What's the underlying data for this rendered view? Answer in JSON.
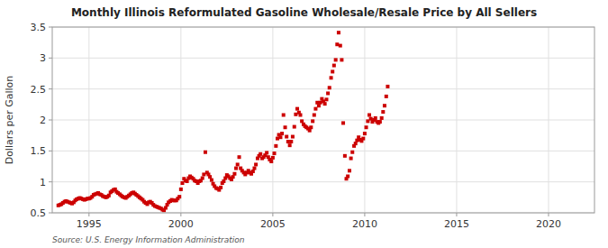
{
  "chart_data": {
    "type": "scatter",
    "title": "Monthly Illinois Reformulated Gasoline Wholesale/Resale Price by All Sellers",
    "ylabel": "Dollars per Gallon",
    "annotations": [
      "Source: U.S. Energy Information Administration"
    ],
    "color": "#cc0000",
    "marker": "square",
    "grid": true,
    "xlim": [
      1993.0,
      2022.5
    ],
    "ylim": [
      0.5,
      3.5
    ],
    "xticks": [
      1995,
      2000,
      2005,
      2010,
      2015,
      2020
    ],
    "yticks": [
      0.5,
      1,
      1.5,
      2,
      2.5,
      3,
      3.5
    ],
    "x": [
      1993.33,
      1993.42,
      1993.5,
      1993.58,
      1993.67,
      1993.75,
      1993.83,
      1993.92,
      1994.0,
      1994.08,
      1994.17,
      1994.25,
      1994.33,
      1994.42,
      1994.5,
      1994.58,
      1994.67,
      1994.75,
      1994.83,
      1994.92,
      1995.0,
      1995.08,
      1995.17,
      1995.25,
      1995.33,
      1995.42,
      1995.5,
      1995.58,
      1995.67,
      1995.75,
      1995.83,
      1995.92,
      1996.0,
      1996.08,
      1996.17,
      1996.25,
      1996.33,
      1996.42,
      1996.5,
      1996.58,
      1996.67,
      1996.75,
      1996.83,
      1996.92,
      1997.0,
      1997.08,
      1997.17,
      1997.25,
      1997.33,
      1997.42,
      1997.5,
      1997.58,
      1997.67,
      1997.75,
      1997.83,
      1997.92,
      1998.0,
      1998.08,
      1998.17,
      1998.25,
      1998.33,
      1998.42,
      1998.5,
      1998.58,
      1998.67,
      1998.75,
      1998.83,
      1998.92,
      1999.0,
      1999.08,
      1999.17,
      1999.25,
      1999.33,
      1999.42,
      1999.5,
      1999.58,
      1999.67,
      1999.75,
      1999.83,
      1999.92,
      2000.0,
      2000.08,
      2000.17,
      2000.25,
      2000.33,
      2000.42,
      2000.5,
      2000.58,
      2000.67,
      2000.75,
      2000.83,
      2000.92,
      2001.0,
      2001.08,
      2001.17,
      2001.25,
      2001.33,
      2001.42,
      2001.5,
      2001.58,
      2001.67,
      2001.75,
      2001.83,
      2001.92,
      2002.0,
      2002.08,
      2002.17,
      2002.25,
      2002.33,
      2002.42,
      2002.5,
      2002.58,
      2002.67,
      2002.75,
      2002.83,
      2002.92,
      2003.0,
      2003.08,
      2003.17,
      2003.25,
      2003.33,
      2003.42,
      2003.5,
      2003.58,
      2003.67,
      2003.75,
      2003.83,
      2003.92,
      2004.0,
      2004.08,
      2004.17,
      2004.25,
      2004.33,
      2004.42,
      2004.5,
      2004.58,
      2004.67,
      2004.75,
      2004.83,
      2004.92,
      2005.0,
      2005.08,
      2005.17,
      2005.25,
      2005.33,
      2005.42,
      2005.5,
      2005.58,
      2005.67,
      2005.75,
      2005.83,
      2005.92,
      2006.0,
      2006.08,
      2006.17,
      2006.25,
      2006.33,
      2006.42,
      2006.5,
      2006.58,
      2006.67,
      2006.75,
      2006.83,
      2006.92,
      2007.0,
      2007.08,
      2007.17,
      2007.25,
      2007.33,
      2007.42,
      2007.5,
      2007.58,
      2007.67,
      2007.75,
      2007.83,
      2007.92,
      2008.0,
      2008.08,
      2008.17,
      2008.25,
      2008.33,
      2008.42,
      2008.5,
      2008.58,
      2008.67,
      2008.75,
      2008.83,
      2008.92,
      2009.0,
      2009.08,
      2009.17,
      2009.25,
      2009.33,
      2009.42,
      2009.5,
      2009.58,
      2009.67,
      2009.75,
      2009.83,
      2009.92,
      2010.0,
      2010.08,
      2010.17,
      2010.25,
      2010.33,
      2010.42,
      2010.5,
      2010.58,
      2010.67,
      2010.75,
      2010.83,
      2010.92,
      2011.0,
      2011.08,
      2011.17,
      2011.25
    ],
    "values": [
      0.62,
      0.63,
      0.64,
      0.66,
      0.68,
      0.69,
      0.68,
      0.67,
      0.66,
      0.65,
      0.67,
      0.7,
      0.72,
      0.73,
      0.74,
      0.73,
      0.72,
      0.71,
      0.72,
      0.73,
      0.73,
      0.74,
      0.76,
      0.79,
      0.8,
      0.81,
      0.82,
      0.8,
      0.79,
      0.77,
      0.76,
      0.75,
      0.76,
      0.78,
      0.83,
      0.85,
      0.87,
      0.88,
      0.84,
      0.82,
      0.8,
      0.78,
      0.76,
      0.75,
      0.74,
      0.76,
      0.78,
      0.8,
      0.82,
      0.83,
      0.81,
      0.79,
      0.77,
      0.75,
      0.73,
      0.71,
      0.68,
      0.66,
      0.64,
      0.67,
      0.68,
      0.66,
      0.63,
      0.61,
      0.6,
      0.59,
      0.58,
      0.57,
      0.55,
      0.54,
      0.58,
      0.63,
      0.67,
      0.69,
      0.71,
      0.7,
      0.7,
      0.7,
      0.73,
      0.76,
      0.88,
      0.98,
      1.05,
      1.02,
      1.01,
      1.06,
      1.09,
      1.07,
      1.05,
      1.02,
      1.01,
      0.98,
      1.01,
      1.02,
      1.06,
      1.12,
      1.48,
      1.15,
      1.12,
      1.08,
      1.03,
      0.97,
      0.93,
      0.9,
      0.89,
      0.87,
      0.91,
      0.98,
      1.01,
      1.06,
      1.11,
      1.09,
      1.06,
      1.04,
      1.08,
      1.13,
      1.22,
      1.28,
      1.4,
      1.22,
      1.18,
      1.15,
      1.12,
      1.15,
      1.18,
      1.15,
      1.13,
      1.17,
      1.22,
      1.28,
      1.38,
      1.42,
      1.45,
      1.38,
      1.4,
      1.43,
      1.47,
      1.4,
      1.36,
      1.33,
      1.39,
      1.46,
      1.58,
      1.7,
      1.76,
      1.72,
      1.78,
      2.08,
      1.88,
      1.73,
      1.65,
      1.59,
      1.65,
      1.73,
      1.89,
      2.09,
      2.18,
      2.12,
      2.08,
      1.98,
      1.93,
      1.9,
      1.88,
      1.86,
      1.83,
      1.88,
      1.98,
      2.08,
      2.18,
      2.28,
      2.23,
      2.28,
      2.34,
      2.3,
      2.26,
      2.33,
      2.43,
      2.52,
      2.68,
      2.78,
      2.88,
      2.97,
      3.22,
      3.41,
      3.2,
      2.97,
      1.95,
      1.42,
      1.05,
      1.09,
      1.18,
      1.38,
      1.48,
      1.58,
      1.62,
      1.67,
      1.72,
      1.68,
      1.66,
      1.7,
      1.78,
      1.88,
      1.98,
      2.08,
      2.02,
      1.97,
      2.0,
      2.03,
      1.97,
      1.95,
      1.97,
      2.03,
      2.13,
      2.23,
      2.38,
      2.54
    ]
  }
}
